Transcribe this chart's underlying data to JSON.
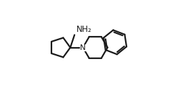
{
  "background_color": "#ffffff",
  "line_color": "#1a1a1a",
  "line_width": 1.6,
  "text_color": "#1a1a1a",
  "nh2_label": "NH₂",
  "n_label": "N",
  "figsize": [
    2.46,
    1.37
  ],
  "dpi": 100,
  "xlim": [
    0.0,
    1.0
  ],
  "ylim": [
    0.05,
    0.95
  ]
}
